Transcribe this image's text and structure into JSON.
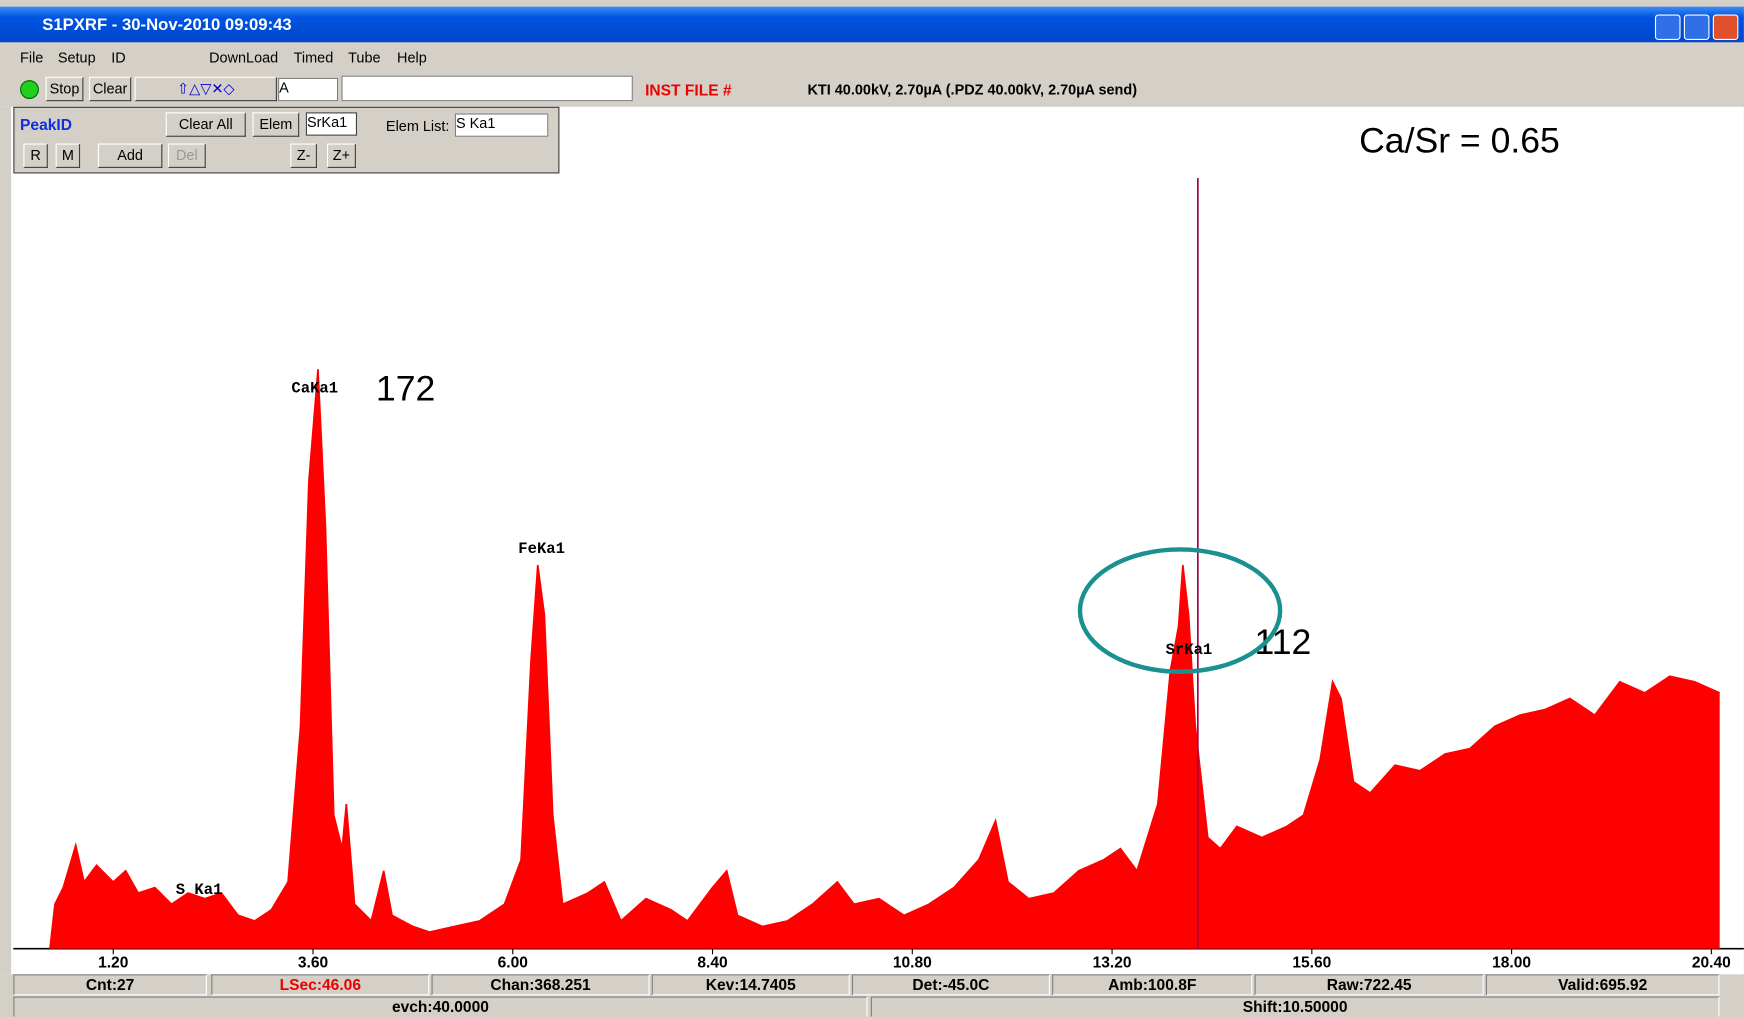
{
  "window": {
    "title": "S1PXRF - 30-Nov-2010 09:09:43"
  },
  "menu": [
    "File",
    "Setup",
    "ID",
    "DownLoad",
    "Timed",
    "Tube",
    "Help"
  ],
  "toolbar": {
    "stop": "Stop",
    "clear": "Clear",
    "mode": "A",
    "inst_file": "INST FILE #",
    "status": "KTI 40.00kV, 2.70µA (.PDZ 40.00kV, 2.70µA send)"
  },
  "peak_panel": {
    "title": "PeakID",
    "r": "R",
    "m": "M",
    "clear_all": "Clear All",
    "elem": "Elem",
    "elem_value": "SrKa1",
    "elem_list_label": "Elem List:",
    "elem_list_value": "S Ka1",
    "add": "Add",
    "del": "Del",
    "zoom_out": "Z-",
    "zoom_in": "Z+"
  },
  "chart_data": {
    "type": "area",
    "annotation": "Ca/Sr = 0.65",
    "color": "#ff0000",
    "xlim": [
      0,
      20.6
    ],
    "xticks": [
      {
        "value": 1.2,
        "label": "1.20"
      },
      {
        "value": 3.6,
        "label": "3.60"
      },
      {
        "value": 6,
        "label": "6.00"
      },
      {
        "value": 8.4,
        "label": "8.40"
      },
      {
        "value": 10.8,
        "label": "10.80"
      },
      {
        "value": 13.2,
        "label": "13.20"
      },
      {
        "value": 15.6,
        "label": "15.60"
      },
      {
        "value": 18,
        "label": "18.00"
      },
      {
        "value": 20.4,
        "label": "20.40"
      }
    ],
    "x": [
      0.44,
      0.5,
      0.6,
      0.75,
      0.85,
      1.0,
      1.2,
      1.35,
      1.5,
      1.7,
      1.9,
      2.1,
      2.3,
      2.5,
      2.7,
      2.9,
      3.1,
      3.3,
      3.45,
      3.55,
      3.66,
      3.75,
      3.85,
      3.95,
      4.0,
      4.1,
      4.3,
      4.45,
      4.55,
      4.8,
      5.0,
      5.3,
      5.6,
      5.9,
      6.1,
      6.22,
      6.3,
      6.38,
      6.48,
      6.6,
      6.9,
      7.1,
      7.3,
      7.6,
      7.9,
      8.1,
      8.4,
      8.57,
      8.7,
      9.0,
      9.3,
      9.6,
      9.9,
      10.1,
      10.4,
      10.7,
      11.0,
      11.3,
      11.6,
      11.8,
      11.95,
      12.2,
      12.5,
      12.8,
      13.1,
      13.3,
      13.5,
      13.75,
      13.9,
      14.0,
      14.05,
      14.12,
      14.2,
      14.35,
      14.5,
      14.7,
      15.0,
      15.3,
      15.5,
      15.7,
      15.85,
      15.95,
      16.1,
      16.3,
      16.6,
      16.9,
      17.2,
      17.5,
      17.8,
      18.1,
      18.4,
      18.7,
      19.0,
      19.3,
      19.6,
      19.9,
      20.2,
      20.5
    ],
    "values": [
      0,
      40,
      55,
      93,
      60,
      75,
      60,
      70,
      50,
      55,
      40,
      50,
      45,
      50,
      30,
      25,
      35,
      60,
      200,
      420,
      521,
      380,
      120,
      90,
      130,
      40,
      25,
      70,
      30,
      20,
      15,
      20,
      25,
      40,
      80,
      260,
      345,
      300,
      120,
      40,
      50,
      60,
      25,
      45,
      35,
      25,
      55,
      70,
      30,
      20,
      25,
      40,
      60,
      40,
      45,
      30,
      40,
      55,
      80,
      115,
      60,
      45,
      50,
      70,
      80,
      90,
      70,
      130,
      250,
      290,
      345,
      300,
      200,
      100,
      90,
      110,
      100,
      110,
      120,
      170,
      240,
      225,
      150,
      140,
      165,
      160,
      175,
      180,
      200,
      210,
      215,
      225,
      210,
      240,
      230,
      245,
      240,
      230
    ],
    "peak_labels": [
      {
        "label": "S Ka1"
      },
      {
        "label": "CaKa1",
        "count": "172"
      },
      {
        "label": "FeKa1"
      },
      {
        "label": "SrKa1",
        "count": "112"
      }
    ]
  },
  "status_bar": {
    "row1": [
      "Cnt:27",
      "LSec:46.06",
      "Chan:368.251",
      "Kev:14.7405",
      "Det:-45.0C",
      "Amb:100.8F",
      "Raw:722.45",
      "Valid:695.92"
    ],
    "row2": [
      "evch:40.0000",
      "Shift:10.50000"
    ]
  }
}
